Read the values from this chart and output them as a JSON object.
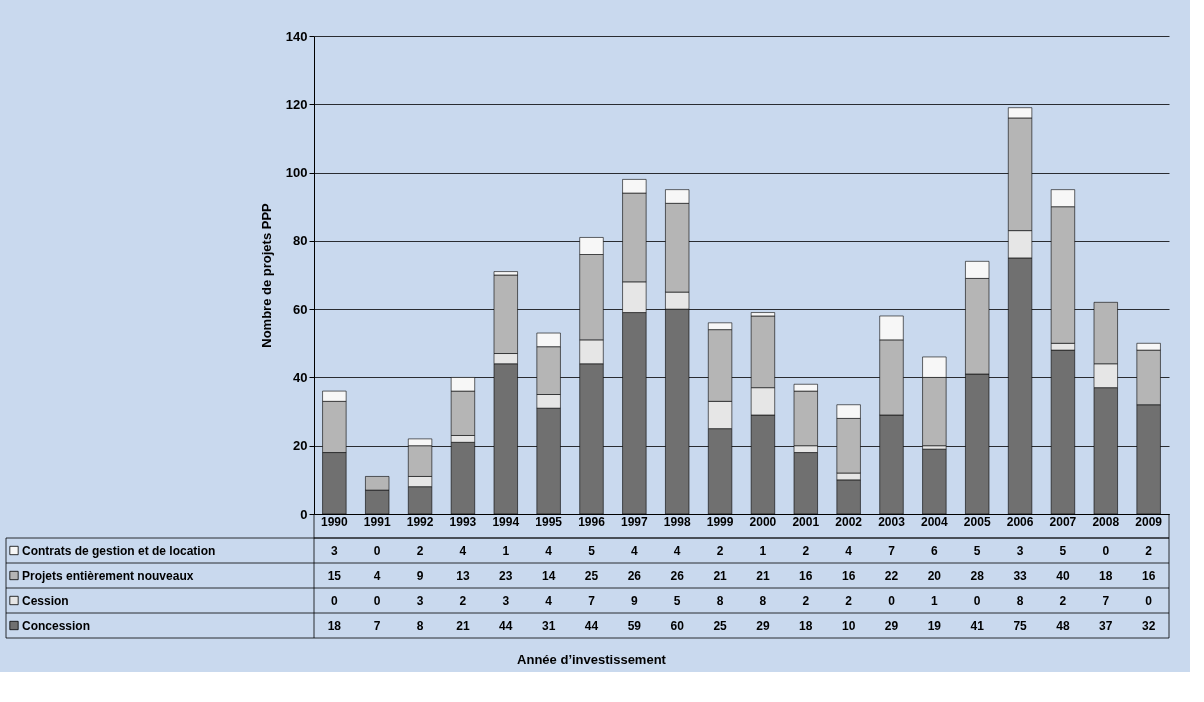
{
  "chart_data": {
    "type": "bar",
    "stacked": true,
    "ylabel": "Nombre de projets PPP",
    "annotations": [
      "Année d’investissement"
    ],
    "categories": [
      "1990",
      "1991",
      "1992",
      "1993",
      "1994",
      "1995",
      "1996",
      "1997",
      "1998",
      "1999",
      "2000",
      "2001",
      "2002",
      "2003",
      "2004",
      "2005",
      "2006",
      "2007",
      "2008",
      "2009"
    ],
    "series": [
      {
        "name": "Concession",
        "color": "#707070",
        "values": [
          18,
          7,
          8,
          21,
          44,
          31,
          44,
          59,
          60,
          25,
          29,
          18,
          10,
          29,
          19,
          41,
          75,
          48,
          37,
          32
        ]
      },
      {
        "name": "Cession",
        "color": "#e6e6e6",
        "values": [
          0,
          0,
          3,
          2,
          3,
          4,
          7,
          9,
          5,
          8,
          8,
          2,
          2,
          0,
          1,
          0,
          8,
          2,
          7,
          0
        ]
      },
      {
        "name": "Projets entièrement nouveaux",
        "color": "#b5b5b5",
        "values": [
          15,
          4,
          9,
          13,
          23,
          14,
          25,
          26,
          26,
          21,
          21,
          16,
          16,
          22,
          20,
          28,
          33,
          40,
          18,
          16
        ]
      },
      {
        "name": "Contrats de gestion et de location",
        "color": "#f7f7f7",
        "values": [
          3,
          0,
          2,
          4,
          1,
          4,
          5,
          4,
          4,
          2,
          1,
          2,
          4,
          7,
          6,
          5,
          3,
          5,
          0,
          2
        ]
      }
    ],
    "ylim": [
      0,
      140
    ],
    "yticks": [
      0,
      20,
      40,
      60,
      80,
      100,
      120,
      140
    ],
    "grid": "y",
    "legend": "bottom",
    "data_labels": true
  }
}
